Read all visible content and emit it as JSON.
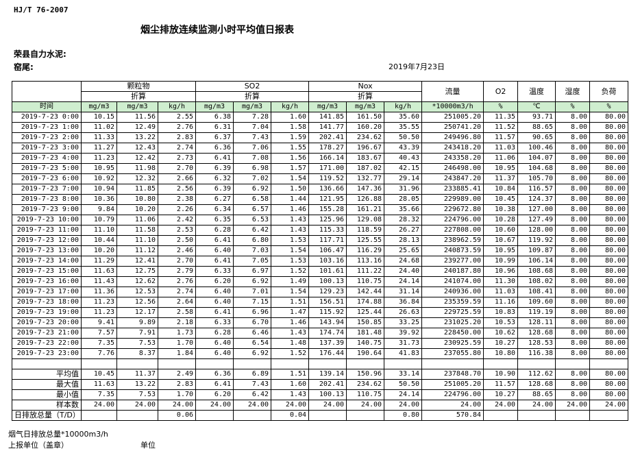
{
  "header": {
    "standard": "HJ/T  76-2007",
    "title": "烟尘排放连续监测小时平均值日报表",
    "company": "荣县自力水泥:",
    "source": "窑尾:",
    "date": "2019年7月23日"
  },
  "table": {
    "groups": [
      "颗粒物",
      "SO2",
      "Nox"
    ],
    "converted": [
      "折算",
      "折算",
      "折算"
    ],
    "columns": [
      "流量",
      "O2",
      "温度",
      "湿度",
      "负荷"
    ],
    "units": [
      "时间",
      "mg/m3",
      "mg/m3",
      "kg/h",
      "mg/m3",
      "mg/m3",
      "kg/h",
      "mg/m3",
      "mg/m3",
      "kg/h",
      "*10000m3/h",
      "%",
      "℃",
      "%",
      "%"
    ],
    "rows": [
      [
        "2019-7-23 0:00",
        "10.15",
        "11.56",
        "2.55",
        "6.38",
        "7.28",
        "1.60",
        "141.85",
        "161.50",
        "35.60",
        "251005.20",
        "11.35",
        "93.71",
        "8.00",
        "80.00"
      ],
      [
        "2019-7-23 1:00",
        "11.02",
        "12.49",
        "2.76",
        "6.31",
        "7.04",
        "1.58",
        "141.77",
        "160.20",
        "35.55",
        "250741.20",
        "11.52",
        "88.65",
        "8.00",
        "80.00"
      ],
      [
        "2019-7-23 2:00",
        "11.33",
        "13.22",
        "2.83",
        "6.37",
        "7.43",
        "1.59",
        "202.41",
        "234.62",
        "50.50",
        "249496.80",
        "11.57",
        "90.65",
        "8.00",
        "80.00"
      ],
      [
        "2019-7-23 3:00",
        "11.27",
        "12.43",
        "2.74",
        "6.36",
        "7.06",
        "1.55",
        "178.27",
        "196.67",
        "43.39",
        "243418.20",
        "11.03",
        "100.46",
        "8.00",
        "80.00"
      ],
      [
        "2019-7-23 4:00",
        "11.23",
        "12.42",
        "2.73",
        "6.41",
        "7.08",
        "1.56",
        "166.14",
        "183.67",
        "40.43",
        "243358.20",
        "11.06",
        "104.07",
        "8.00",
        "80.00"
      ],
      [
        "2019-7-23 5:00",
        "10.95",
        "11.98",
        "2.70",
        "6.39",
        "6.98",
        "1.57",
        "171.00",
        "187.02",
        "42.15",
        "246498.00",
        "10.95",
        "104.68",
        "8.00",
        "80.00"
      ],
      [
        "2019-7-23 6:00",
        "10.92",
        "12.32",
        "2.66",
        "6.32",
        "7.02",
        "1.54",
        "119.52",
        "132.77",
        "29.14",
        "243847.20",
        "11.37",
        "105.70",
        "8.00",
        "80.00"
      ],
      [
        "2019-7-23 7:00",
        "10.94",
        "11.85",
        "2.56",
        "6.39",
        "6.92",
        "1.50",
        "136.66",
        "147.36",
        "31.96",
        "233885.41",
        "10.84",
        "116.57",
        "8.00",
        "80.00"
      ],
      [
        "2019-7-23 8:00",
        "10.36",
        "10.80",
        "2.38",
        "6.27",
        "6.58",
        "1.44",
        "121.95",
        "126.88",
        "28.05",
        "229989.00",
        "10.45",
        "124.37",
        "8.00",
        "80.00"
      ],
      [
        "2019-7-23 9:00",
        "9.84",
        "10.20",
        "2.26",
        "6.34",
        "6.57",
        "1.46",
        "155.28",
        "161.21",
        "35.66",
        "229672.80",
        "10.38",
        "127.00",
        "8.00",
        "80.00"
      ],
      [
        "2019-7-23 10:00",
        "10.79",
        "11.06",
        "2.42",
        "6.35",
        "6.53",
        "1.43",
        "125.96",
        "129.08",
        "28.32",
        "224796.00",
        "10.28",
        "127.49",
        "8.00",
        "80.00"
      ],
      [
        "2019-7-23 11:00",
        "11.10",
        "11.58",
        "2.53",
        "6.28",
        "6.42",
        "1.43",
        "115.33",
        "118.59",
        "26.27",
        "227808.00",
        "10.60",
        "128.00",
        "8.00",
        "80.00"
      ],
      [
        "2019-7-23 12:00",
        "10.44",
        "11.10",
        "2.50",
        "6.41",
        "6.80",
        "1.53",
        "117.71",
        "125.55",
        "28.13",
        "238962.59",
        "10.67",
        "119.92",
        "8.00",
        "80.00"
      ],
      [
        "2019-7-23 13:00",
        "10.20",
        "11.12",
        "2.46",
        "6.40",
        "7.03",
        "1.54",
        "106.47",
        "116.29",
        "25.65",
        "240873.59",
        "10.95",
        "109.87",
        "8.00",
        "80.00"
      ],
      [
        "2019-7-23 14:00",
        "11.29",
        "12.41",
        "2.70",
        "6.41",
        "7.05",
        "1.53",
        "103.16",
        "113.16",
        "24.68",
        "239277.00",
        "10.99",
        "106.14",
        "8.00",
        "80.00"
      ],
      [
        "2019-7-23 15:00",
        "11.63",
        "12.75",
        "2.79",
        "6.33",
        "6.97",
        "1.52",
        "101.61",
        "111.22",
        "24.40",
        "240187.80",
        "10.96",
        "108.68",
        "8.00",
        "80.00"
      ],
      [
        "2019-7-23 16:00",
        "11.43",
        "12.62",
        "2.76",
        "6.20",
        "6.92",
        "1.49",
        "100.13",
        "110.75",
        "24.14",
        "241074.00",
        "11.30",
        "108.02",
        "8.00",
        "80.00"
      ],
      [
        "2019-7-23 17:00",
        "11.36",
        "12.53",
        "2.74",
        "6.40",
        "7.01",
        "1.54",
        "129.23",
        "142.44",
        "31.14",
        "240936.00",
        "11.03",
        "108.41",
        "8.00",
        "80.00"
      ],
      [
        "2019-7-23 18:00",
        "11.23",
        "12.56",
        "2.64",
        "6.40",
        "7.15",
        "1.51",
        "156.51",
        "174.88",
        "36.84",
        "235359.59",
        "11.16",
        "109.60",
        "8.00",
        "80.00"
      ],
      [
        "2019-7-23 19:00",
        "11.23",
        "12.17",
        "2.58",
        "6.41",
        "6.96",
        "1.47",
        "115.92",
        "125.44",
        "26.63",
        "229725.59",
        "10.83",
        "119.19",
        "8.00",
        "80.00"
      ],
      [
        "2019-7-23 20:00",
        "9.41",
        "9.89",
        "2.18",
        "6.33",
        "6.70",
        "1.46",
        "143.94",
        "150.85",
        "33.25",
        "231025.20",
        "10.53",
        "128.11",
        "8.00",
        "80.00"
      ],
      [
        "2019-7-23 21:00",
        "7.57",
        "7.91",
        "1.73",
        "6.28",
        "6.46",
        "1.43",
        "174.74",
        "181.48",
        "39.92",
        "228450.00",
        "10.62",
        "128.68",
        "8.00",
        "80.00"
      ],
      [
        "2019-7-23 22:00",
        "7.35",
        "7.53",
        "1.70",
        "6.40",
        "6.54",
        "1.48",
        "137.39",
        "140.75",
        "31.73",
        "230925.59",
        "10.27",
        "128.53",
        "8.00",
        "80.00"
      ],
      [
        "2019-7-23 23:00",
        "7.76",
        "8.37",
        "1.84",
        "6.40",
        "6.92",
        "1.52",
        "176.44",
        "190.64",
        "41.83",
        "237055.80",
        "10.80",
        "116.38",
        "8.00",
        "80.00"
      ]
    ],
    "summary": [
      [
        "平均值",
        "10.45",
        "11.37",
        "2.49",
        "6.36",
        "6.89",
        "1.51",
        "139.14",
        "150.96",
        "33.14",
        "237848.70",
        "10.90",
        "112.62",
        "8.00",
        "80.00"
      ],
      [
        "最大值",
        "11.63",
        "13.22",
        "2.83",
        "6.41",
        "7.43",
        "1.60",
        "202.41",
        "234.62",
        "50.50",
        "251005.20",
        "11.57",
        "128.68",
        "8.00",
        "80.00"
      ],
      [
        "最小值",
        "7.35",
        "7.53",
        "1.70",
        "6.20",
        "6.42",
        "1.43",
        "100.13",
        "110.75",
        "24.14",
        "224796.00",
        "10.27",
        "88.65",
        "8.00",
        "80.00"
      ],
      [
        "样本数",
        "24.00",
        "24.00",
        "24.00",
        "24.00",
        "24.00",
        "24.00",
        "24.00",
        "24.00",
        "24.00",
        "24.00",
        "24.00",
        "24.00",
        "24.00",
        "24.00"
      ]
    ],
    "daily_total": {
      "label": "日排放总量（T/D）",
      "dust": "0.06",
      "so2": "0.04",
      "nox": "0.80",
      "flow": "570.84"
    }
  },
  "footer": {
    "flow_total": "烟气日排放总量*10000m3/h",
    "reporter": "上报单位（盖章）",
    "unit": "单位"
  }
}
